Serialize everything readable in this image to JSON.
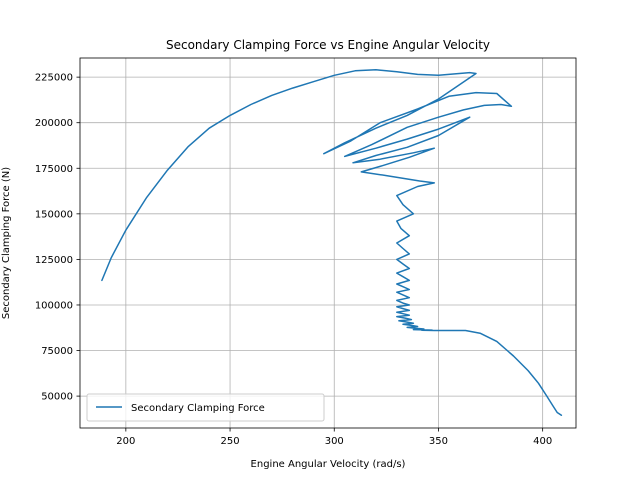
{
  "chart_data": {
    "type": "line",
    "title": "Secondary Clamping Force vs Engine Angular Velocity",
    "xlabel": "Engine Angular Velocity (rad/s)",
    "ylabel": "Secondary Clamping Force (N)",
    "xlim": [
      178,
      416
    ],
    "ylim": [
      32500,
      235500
    ],
    "xticks": [
      200,
      250,
      300,
      350,
      400
    ],
    "xtick_labels": [
      "200",
      "250",
      "300",
      "350",
      "400"
    ],
    "yticks": [
      50000,
      75000,
      100000,
      125000,
      150000,
      175000,
      200000,
      225000
    ],
    "ytick_labels": [
      "50000",
      "75000",
      "100000",
      "125000",
      "150000",
      "175000",
      "200000",
      "225000"
    ],
    "grid": true,
    "legend_position": "lower-left",
    "colors": {
      "series": "#1f77b4",
      "grid": "#b0b0b0",
      "axes": "#000000",
      "legend_border": "#cccccc"
    },
    "series": [
      {
        "name": "Secondary Clamping Force",
        "x": [
          188.5,
          193,
          200,
          210,
          220,
          230,
          240,
          250,
          260,
          270,
          280,
          290,
          300,
          310,
          320,
          330,
          340,
          350,
          355,
          360,
          365,
          368,
          350,
          335,
          320,
          305,
          295,
          308,
          322,
          340,
          355,
          368,
          378,
          385,
          380,
          372,
          362,
          350,
          335,
          318,
          305,
          320,
          335,
          350,
          365,
          350,
          335,
          320,
          309,
          322,
          338,
          348,
          336,
          322,
          313,
          325,
          341,
          348,
          340,
          330,
          333,
          338,
          330,
          332,
          336,
          330,
          333,
          336,
          330,
          333,
          336,
          330,
          333,
          336,
          330,
          333,
          336,
          330,
          333,
          336,
          330,
          333,
          336,
          330,
          333,
          336,
          330,
          333,
          336,
          330,
          334,
          337,
          331,
          335,
          338,
          333,
          337,
          340,
          335,
          339,
          343,
          338,
          343,
          347,
          342,
          348,
          352,
          350,
          356,
          360,
          358,
          363,
          370,
          378,
          386,
          393,
          398,
          402,
          405,
          407,
          409
        ],
        "y": [
          113500,
          126000,
          141000,
          159000,
          174000,
          187000,
          197000,
          204000,
          210000,
          215000,
          219000,
          222500,
          226000,
          228500,
          229000,
          228000,
          226500,
          226000,
          226500,
          227000,
          227500,
          227000,
          213000,
          204000,
          197000,
          189000,
          183000,
          190000,
          200000,
          207500,
          214500,
          216500,
          216000,
          209000,
          210000,
          209500,
          207000,
          203000,
          197500,
          188000,
          181500,
          186000,
          191000,
          196500,
          203000,
          193000,
          186500,
          182000,
          178000,
          180000,
          183500,
          186000,
          181000,
          176000,
          173000,
          171000,
          168000,
          167000,
          165000,
          160000,
          155000,
          150000,
          146000,
          142000,
          138000,
          134000,
          131000,
          128000,
          125000,
          122500,
          120000,
          117500,
          115500,
          113500,
          111500,
          110000,
          108500,
          107000,
          105500,
          104000,
          102500,
          101000,
          100000,
          99000,
          98000,
          97000,
          96000,
          95200,
          94400,
          93600,
          92800,
          92000,
          91300,
          90600,
          90000,
          89400,
          88800,
          88200,
          87700,
          87200,
          86800,
          86500,
          86300,
          86200,
          86100,
          86000,
          86000,
          86000,
          86000,
          86000,
          86000,
          86000,
          84500,
          80000,
          72000,
          64000,
          57000,
          50000,
          44500,
          41000,
          39500
        ]
      }
    ]
  }
}
